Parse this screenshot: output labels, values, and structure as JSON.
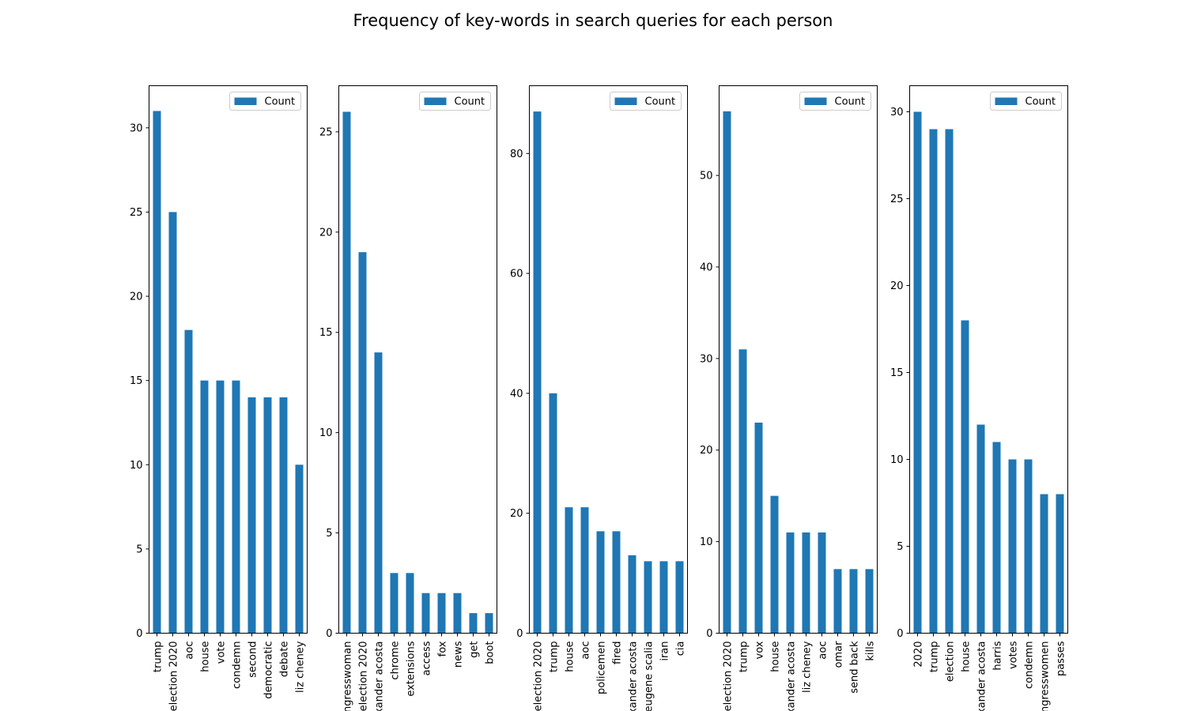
{
  "figure_title": "Frequency of key-words in search queries for each person",
  "colors": {
    "bar": "#1f77b4",
    "axis": "#000000",
    "legend_border": "#cccccc"
  },
  "chart_data": [
    {
      "type": "bar",
      "legend": [
        "Count"
      ],
      "legend_placement": "top-right",
      "grid": false,
      "ylim": [
        0,
        32.5
      ],
      "yticks": [
        0,
        5,
        10,
        15,
        20,
        25,
        30
      ],
      "categories": [
        "trump",
        "election 2020",
        "aoc",
        "house",
        "vote",
        "condemn",
        "second",
        "democratic",
        "debate",
        "liz cheney"
      ],
      "series": [
        {
          "name": "Count",
          "values": [
            31,
            25,
            18,
            15,
            15,
            15,
            14,
            14,
            14,
            10
          ]
        }
      ]
    },
    {
      "type": "bar",
      "legend": [
        "Count"
      ],
      "legend_placement": "top-right",
      "grid": false,
      "ylim": [
        0,
        27.3
      ],
      "yticks": [
        0,
        5,
        10,
        15,
        20,
        25
      ],
      "categories": [
        "congresswoman",
        "election 2020",
        "alexander acosta",
        "chrome",
        "extensions",
        "access",
        "fox",
        "news",
        "get",
        "boot"
      ],
      "series": [
        {
          "name": "Count",
          "values": [
            26,
            19,
            14,
            3,
            3,
            2,
            2,
            2,
            1,
            1
          ]
        }
      ]
    },
    {
      "type": "bar",
      "legend": [
        "Count"
      ],
      "legend_placement": "top-right",
      "grid": false,
      "ylim": [
        0,
        91.3
      ],
      "yticks": [
        0,
        20,
        40,
        60,
        80
      ],
      "categories": [
        "election 2020",
        "trump",
        "house",
        "aoc",
        "policemen",
        "fired",
        "alexander acosta",
        "eugene scalia",
        "iran",
        "cia"
      ],
      "series": [
        {
          "name": "Count",
          "values": [
            87,
            40,
            21,
            21,
            17,
            17,
            13,
            12,
            12,
            12
          ]
        }
      ]
    },
    {
      "type": "bar",
      "legend": [
        "Count"
      ],
      "legend_placement": "top-right",
      "grid": false,
      "ylim": [
        0,
        59.8
      ],
      "yticks": [
        0,
        10,
        20,
        30,
        40,
        50
      ],
      "categories": [
        "election 2020",
        "trump",
        "vox",
        "house",
        "alexander acosta",
        "liz cheney",
        "aoc",
        "omar",
        "send back",
        "kills"
      ],
      "series": [
        {
          "name": "Count",
          "values": [
            57,
            31,
            23,
            15,
            11,
            11,
            11,
            7,
            7,
            7
          ]
        }
      ]
    },
    {
      "type": "bar",
      "legend": [
        "Count"
      ],
      "legend_placement": "top-right",
      "grid": false,
      "ylim": [
        0,
        31.5
      ],
      "yticks": [
        0,
        5,
        10,
        15,
        20,
        25,
        30
      ],
      "categories": [
        "2020",
        "trump",
        "election",
        "house",
        "alexander acosta",
        "harris",
        "votes",
        "condemn",
        "congresswomen",
        "passes"
      ],
      "series": [
        {
          "name": "Count",
          "values": [
            30,
            29,
            29,
            18,
            12,
            11,
            10,
            10,
            8,
            8
          ]
        }
      ]
    }
  ]
}
